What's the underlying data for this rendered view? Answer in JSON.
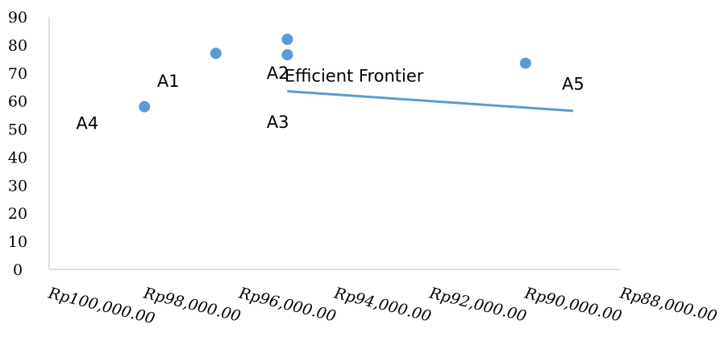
{
  "chart_data": {
    "type": "scatter",
    "x_reversed": true,
    "xlim": [
      88000,
      100000
    ],
    "ylim": [
      0,
      90
    ],
    "y_ticks": [
      0,
      10,
      20,
      30,
      40,
      50,
      60,
      70,
      80,
      90
    ],
    "x_ticks": [
      100000,
      98000,
      96000,
      94000,
      92000,
      90000,
      88000
    ],
    "x_tick_labels": [
      "Rp100,000.00",
      "Rp98,000.00",
      "Rp96,000.00",
      "Rp94,000.00",
      "Rp92,000.00",
      "Rp90,000.00",
      "Rp88,000.00"
    ],
    "y_tick_labels": [
      "0",
      "10",
      "20",
      "30",
      "40",
      "50",
      "60",
      "70",
      "80",
      "90"
    ],
    "points": [
      {
        "x": 98000,
        "y": 58
      },
      {
        "x": 96500,
        "y": 77
      },
      {
        "x": 95000,
        "y": 82
      },
      {
        "x": 95000,
        "y": 76.5
      },
      {
        "x": 90000,
        "y": 73.5
      }
    ],
    "line": [
      {
        "x": 95000,
        "y": 63.5
      },
      {
        "x": 89000,
        "y": 56.5
      }
    ],
    "point_labels": [
      {
        "text": "A4",
        "x": 99200,
        "y": 52
      },
      {
        "text": "A1",
        "x": 97500,
        "y": 67
      },
      {
        "text": "A2",
        "x": 95200,
        "y": 70
      },
      {
        "text": "A3",
        "x": 95200,
        "y": 52.5
      },
      {
        "text": "A5",
        "x": 89000,
        "y": 66
      }
    ],
    "annotations": [
      {
        "text": "Efficient Frontier",
        "x": 93600,
        "y": 69
      }
    ],
    "colors": {
      "marker": "#5B9BD5",
      "line": "#5B9BD5",
      "axis": "#BFBFBF"
    },
    "grid": false
  }
}
